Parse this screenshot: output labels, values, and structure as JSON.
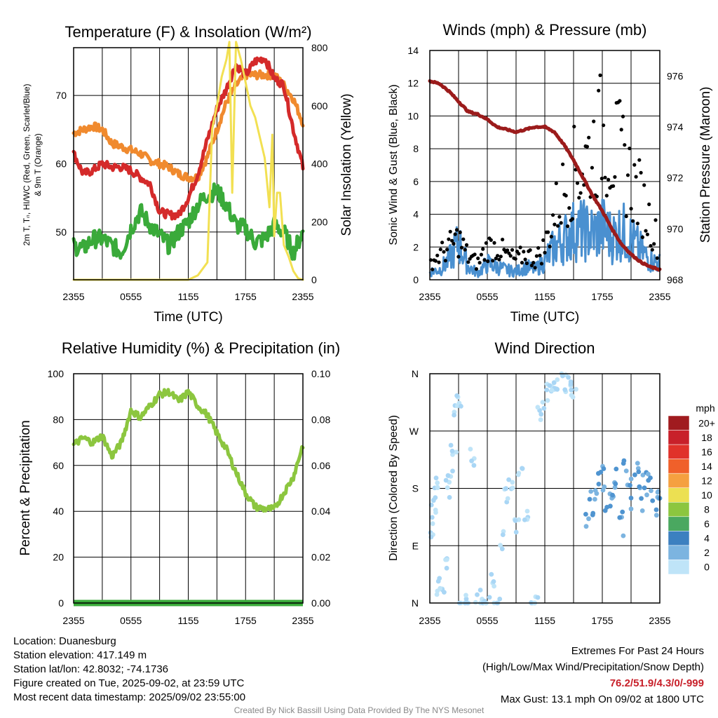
{
  "chart_data": [
    {
      "type": "line",
      "title": "Temperature (F) & Insolation (W/m²)",
      "xlabel": "Time (UTC)",
      "ylabel": "2m T, Tₙ, HI/WC (Red, Green, Scarlet/Blue) & 9m T (Orange)",
      "ylabel_lines": [
        "2m T, Tₙ, HI/WC (Red, Green, Scarlet/Blue)",
        "& 9m T (Orange)"
      ],
      "y2label": "Solar Insolation (Yellow)",
      "x_tick_labels": [
        "2355",
        "0555",
        "1155",
        "1755",
        "2355"
      ],
      "x_hours": [
        0,
        24
      ],
      "ylim": [
        43,
        77
      ],
      "y_ticks": [
        50,
        60,
        70
      ],
      "y2lim": [
        0,
        800
      ],
      "y2_ticks": [
        0,
        200,
        400,
        600,
        800
      ],
      "grid": true,
      "series": [
        {
          "color": "#f08a2e",
          "x": [
            0,
            1,
            2,
            3,
            4,
            5,
            6,
            7,
            8,
            9,
            10,
            11,
            12,
            13,
            14,
            15,
            16,
            17,
            18,
            19,
            20,
            21,
            22,
            23,
            24
          ],
          "values": [
            64.5,
            65,
            65.5,
            65,
            63,
            62.5,
            62,
            61.5,
            60.5,
            60,
            59.5,
            58.5,
            58,
            58,
            61,
            65,
            69,
            71.5,
            73,
            73,
            73,
            73,
            71.5,
            69.5,
            66
          ]
        },
        {
          "color": "#d42a2a",
          "x": [
            0,
            1,
            2,
            3,
            4,
            5,
            6,
            7,
            8,
            9,
            10,
            11,
            12,
            13,
            14,
            15,
            16,
            17,
            18,
            19,
            20,
            21,
            22,
            23,
            24
          ],
          "values": [
            61.5,
            58.5,
            59,
            60,
            59.5,
            59.5,
            59,
            58,
            57,
            53,
            52.5,
            52.5,
            55,
            58.5,
            63.5,
            68,
            71,
            74.5,
            73,
            75,
            75.5,
            72.5,
            71.5,
            65,
            59.5
          ]
        },
        {
          "color": "#3aaa3a",
          "x": [
            0,
            1,
            2,
            3,
            4,
            5,
            6,
            7,
            8,
            9,
            10,
            11,
            12,
            13,
            14,
            15,
            16,
            17,
            18,
            19,
            20,
            21,
            22,
            23,
            24
          ],
          "values": [
            48,
            47.5,
            49,
            49,
            48,
            47,
            50.5,
            53,
            51,
            49.5,
            48,
            50,
            51.5,
            54,
            55.5,
            56,
            54,
            51,
            50.5,
            48.5,
            49,
            51,
            50,
            47,
            50
          ]
        },
        {
          "color": "#f2e052",
          "x": [
            0,
            11,
            12,
            13,
            14,
            14.5,
            15,
            15.5,
            16,
            16.3,
            16.6,
            17,
            17.5,
            18,
            18.5,
            19,
            20,
            20.5,
            20.8,
            21,
            21.3,
            21.6,
            22,
            22.5,
            23,
            23.5,
            24
          ],
          "values": [
            0,
            0,
            0,
            15,
            60,
            520,
            600,
            700,
            760,
            820,
            300,
            820,
            760,
            680,
            600,
            560,
            420,
            250,
            500,
            150,
            300,
            300,
            120,
            80,
            30,
            5,
            0
          ]
        }
      ]
    },
    {
      "type": "scatter",
      "title": "Winds (mph) & Pressure (mb)",
      "xlabel": "Time (UTC)",
      "ylabel": "Sonic Wind & Gust (Blue, Black)",
      "y2label": "Station Pressure (Maroon)",
      "x_tick_labels": [
        "2355",
        "0555",
        "1155",
        "1755",
        "2355"
      ],
      "ylim": [
        0,
        14
      ],
      "y_ticks": [
        0,
        2,
        4,
        6,
        8,
        10,
        12,
        14
      ],
      "y2lim": [
        968,
        977
      ],
      "y2_ticks": [
        968,
        970,
        972,
        974,
        976
      ],
      "grid": true,
      "series": [
        {
          "color": "#4a90d0",
          "x": [
            0,
            1,
            2,
            3,
            4,
            5,
            6,
            7,
            8,
            9,
            10,
            11,
            12,
            13,
            14,
            15,
            16,
            17,
            18,
            19,
            20,
            21,
            22,
            23,
            24
          ],
          "values": [
            0.5,
            0.6,
            1.2,
            2.3,
            0.8,
            0.4,
            1.0,
            0.8,
            0.6,
            0.5,
            0.8,
            0.6,
            1.2,
            2.0,
            2.5,
            3.0,
            3.0,
            2.8,
            3.2,
            2.6,
            3.0,
            2.5,
            1.8,
            1.2,
            1.0
          ]
        },
        {
          "color": "#000000",
          "x": [
            0,
            1,
            2,
            3,
            4,
            5,
            6,
            7,
            8,
            9,
            10,
            11,
            12,
            13,
            14,
            15,
            16,
            17,
            18,
            19,
            20,
            21,
            22,
            23,
            24
          ],
          "values": [
            1.0,
            1.5,
            2.0,
            2.5,
            1.4,
            1.0,
            2.0,
            2.0,
            1.5,
            1.2,
            1.6,
            1.2,
            2.0,
            4.0,
            5.5,
            6.5,
            7.0,
            8.0,
            9.0,
            8.0,
            7.5,
            6.0,
            5.0,
            3.5,
            2.0
          ]
        },
        {
          "color": "#9b1b1b",
          "x": [
            0,
            1,
            2,
            3,
            4,
            5,
            6,
            7,
            8,
            9,
            10,
            11,
            12,
            13,
            14,
            15,
            16,
            17,
            18,
            19,
            20,
            21,
            22,
            23,
            24
          ],
          "values": [
            975.8,
            975.7,
            975.4,
            975.0,
            974.6,
            974.5,
            974.3,
            974.0,
            973.9,
            973.8,
            973.9,
            974.0,
            974.0,
            973.8,
            973.3,
            972.7,
            972.0,
            971.3,
            970.7,
            970.0,
            969.4,
            969.0,
            968.7,
            968.5,
            968.4
          ]
        }
      ]
    },
    {
      "type": "line",
      "title": "Relative Humidity (%) & Precipitation (in)",
      "ylabel": "Percent & Precipitation",
      "x_tick_labels": [
        "2355",
        "0555",
        "1155",
        "1755",
        "2355"
      ],
      "ylim": [
        0,
        100
      ],
      "y_ticks": [
        0,
        20,
        40,
        60,
        80,
        100
      ],
      "y2lim": [
        0,
        0.1
      ],
      "y2_tick_labels": [
        "0.00",
        "0.02",
        "0.04",
        "0.06",
        "0.08",
        "0.10"
      ],
      "grid": true,
      "series": [
        {
          "color": "#8cc63f",
          "x": [
            0,
            1,
            2,
            3,
            4,
            5,
            6,
            7,
            8,
            9,
            10,
            11,
            12,
            13,
            14,
            15,
            16,
            17,
            18,
            19,
            20,
            21,
            22,
            23,
            24
          ],
          "values": [
            69,
            72,
            70,
            73,
            64,
            70,
            84,
            81,
            86,
            91,
            92,
            88,
            92,
            86,
            82,
            74,
            67,
            57,
            48,
            42,
            41,
            41,
            48,
            55,
            69
          ]
        },
        {
          "color": "#3aaa3a",
          "x": [
            0,
            24
          ],
          "values": [
            0,
            0
          ]
        }
      ]
    },
    {
      "type": "scatter",
      "title": "Wind Direction",
      "ylabel": "Direction (Colored By Speed)",
      "x_tick_labels": [
        "2355",
        "0555",
        "1155",
        "1755",
        "2355"
      ],
      "y_tick_labels": [
        "N",
        "E",
        "S",
        "W",
        "N"
      ],
      "ylim": [
        0,
        360
      ],
      "legend": {
        "title": "mph",
        "position": "right",
        "labels": [
          "20+",
          "18",
          "16",
          "14",
          "12",
          "10",
          "8",
          "6",
          "4",
          "2",
          "0"
        ],
        "colors": [
          "#a01b1f",
          "#c8202a",
          "#e0322a",
          "#f0602a",
          "#f5a040",
          "#ece052",
          "#8cc63f",
          "#4aa860",
          "#3c80c0",
          "#7cb4e0",
          "#bfe4f8"
        ]
      },
      "series": [
        {
          "color": "#a9d6f5",
          "x": [
            0.2,
            0.4,
            0.6,
            0.8,
            1.0,
            1.3,
            1.6,
            1.9,
            2.2,
            2.5,
            2.8,
            3.1,
            3.4,
            4.0,
            4.5,
            5.0,
            5.6,
            6.0,
            6.5,
            7.0,
            7.5,
            8.0,
            8.5,
            9.0,
            9.5,
            10.0,
            10.5,
            11.0,
            11.5,
            12.0,
            12.5,
            13.0,
            13.5,
            14.0,
            14.5,
            15.0
          ],
          "values": [
            110,
            140,
            175,
            190,
            25,
            20,
            60,
            180,
            200,
            240,
            310,
            320,
            0,
            0,
            230,
            10,
            0,
            0,
            40,
            0,
            100,
            170,
            190,
            120,
            210,
            130,
            0,
            0,
            300,
            320,
            330,
            345,
            350,
            345,
            340,
            335
          ]
        },
        {
          "color": "#4f94d0",
          "x": [
            16.5,
            17,
            17.5,
            18,
            18.5,
            19,
            19.5,
            20,
            20.5,
            21,
            21.5,
            22,
            22.5,
            23,
            23.5,
            24
          ],
          "values": [
            140,
            160,
            180,
            200,
            170,
            150,
            190,
            120,
            200,
            170,
            210,
            160,
            180,
            200,
            150,
            170
          ]
        }
      ]
    }
  ],
  "info": {
    "location": "Location: Duanesburg",
    "elevation": "Station elevation: 417.149 m",
    "latlon": "Station lat/lon: 42.8032; -74.1736",
    "created": "Figure created on Tue, 2025-09-02, at 23:59 UTC",
    "recent": "Most recent data timestamp: 2025/09/02 23:55:00"
  },
  "extremes": {
    "title": "Extremes For Past 24 Hours",
    "subtitle": "(High/Low/Max Wind/Precipitation/Snow Depth)",
    "values": "76.2/51.9/4.3/0/-999",
    "gust": "Max Gust: 13.1 mph On 09/02 at 1800 UTC"
  },
  "credit": "Created By Nick Bassill Using Data Provided By The NYS Mesonet"
}
